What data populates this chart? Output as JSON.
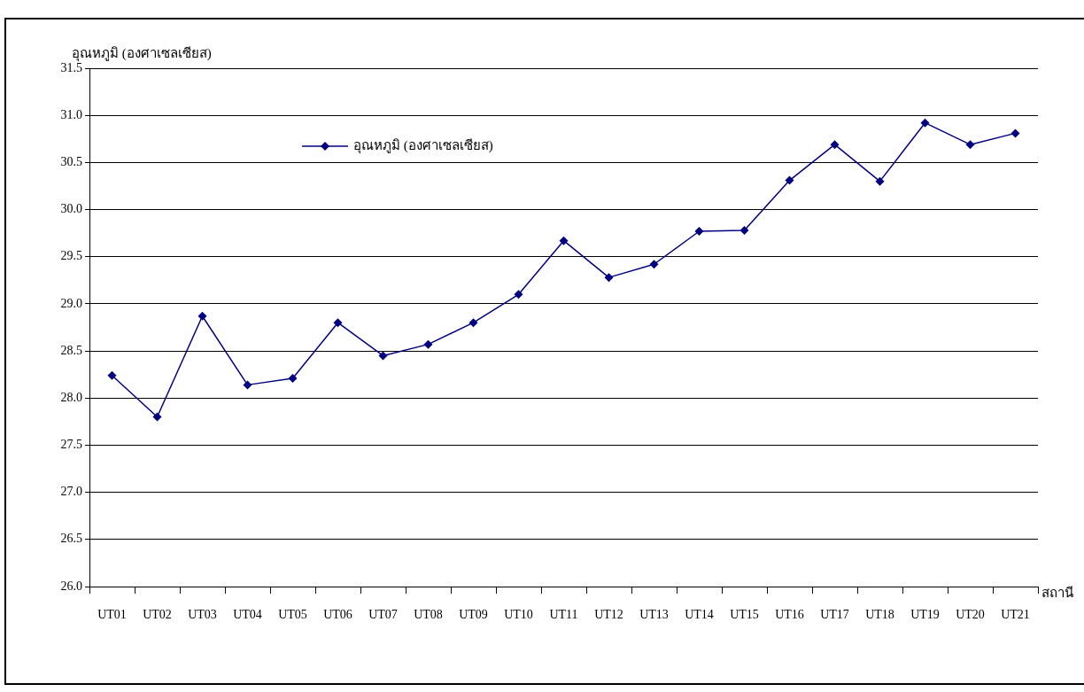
{
  "chart_data": {
    "type": "line",
    "ylabel": "อุณหภูมิ (องศาเซลเซียส)",
    "xlabel": "สถานี",
    "categories": [
      "UT01",
      "UT02",
      "UT03",
      "UT04",
      "UT05",
      "UT06",
      "UT07",
      "UT08",
      "UT09",
      "UT10",
      "UT11",
      "UT12",
      "UT13",
      "UT14",
      "UT15",
      "UT16",
      "UT17",
      "UT18",
      "UT19",
      "UT20",
      "UT21"
    ],
    "series": [
      {
        "name": "อุณหภูมิ (องศาเซลเซียส)",
        "color": "#000080",
        "values": [
          28.24,
          27.8,
          28.87,
          28.14,
          28.21,
          28.8,
          28.45,
          28.57,
          28.8,
          29.1,
          29.67,
          29.28,
          29.42,
          29.77,
          29.78,
          30.31,
          30.69,
          30.3,
          30.92,
          30.69,
          30.81
        ]
      }
    ],
    "ylim": [
      26,
      31.5
    ],
    "yticks": [
      {
        "value": 26,
        "label": "26.0"
      },
      {
        "value": 26.5,
        "label": "26.5"
      },
      {
        "value": 27,
        "label": "27.0"
      },
      {
        "value": 27.5,
        "label": "27.5"
      },
      {
        "value": 28,
        "label": "28.0"
      },
      {
        "value": 28.5,
        "label": "28.5"
      },
      {
        "value": 29,
        "label": "29.0"
      },
      {
        "value": 29.5,
        "label": "29.5"
      },
      {
        "value": 30,
        "label": "30.0"
      },
      {
        "value": 30.5,
        "label": "30.5"
      },
      {
        "value": 31,
        "label": "31.0"
      },
      {
        "value": 31.5,
        "label": "31.5"
      }
    ],
    "grid": "y",
    "legend": "top",
    "marker": "diamond",
    "line_style": "solid"
  }
}
